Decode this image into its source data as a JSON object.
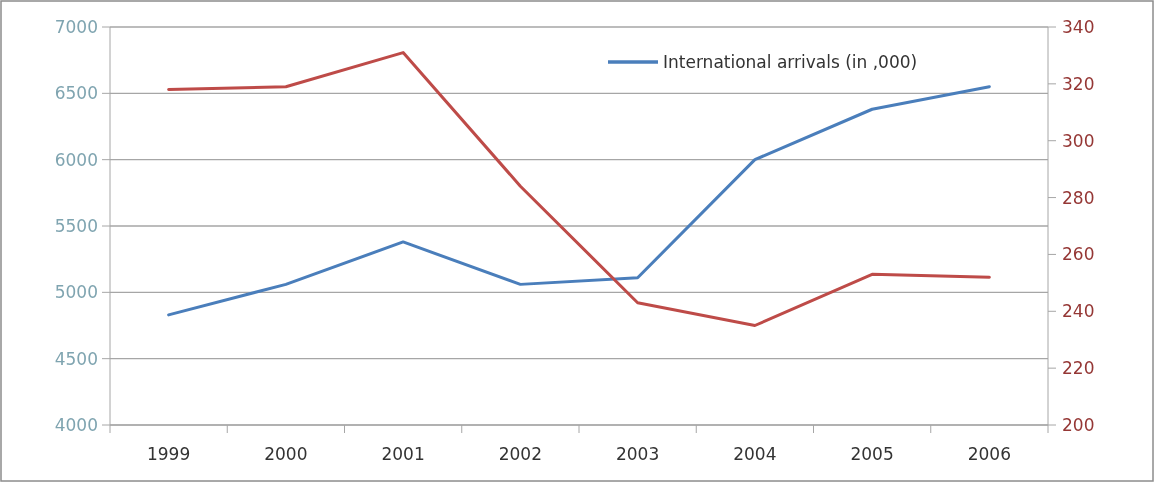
{
  "chart_data": {
    "type": "line",
    "categories": [
      "1999",
      "2000",
      "2001",
      "2002",
      "2003",
      "2004",
      "2005",
      "2006"
    ],
    "series": [
      {
        "name": "International arrivals (in ,000)",
        "color": "#4a7ebb",
        "values": [
          4830,
          5060,
          5380,
          5060,
          5110,
          6000,
          6380,
          6550
        ]
      },
      {
        "color": "#be4b48",
        "axis": "y2",
        "values": [
          318,
          319,
          331,
          284,
          243,
          235,
          253,
          252
        ]
      }
    ],
    "ylim": [
      4000,
      7000
    ],
    "yticks": [
      4000,
      4500,
      5000,
      5500,
      6000,
      6500,
      7000
    ],
    "y2lim": [
      200,
      340
    ],
    "y2ticks": [
      200,
      220,
      240,
      260,
      280,
      300,
      320,
      340
    ],
    "grid": "y",
    "legend": "top right",
    "marker": "none",
    "line_style": "solid"
  }
}
